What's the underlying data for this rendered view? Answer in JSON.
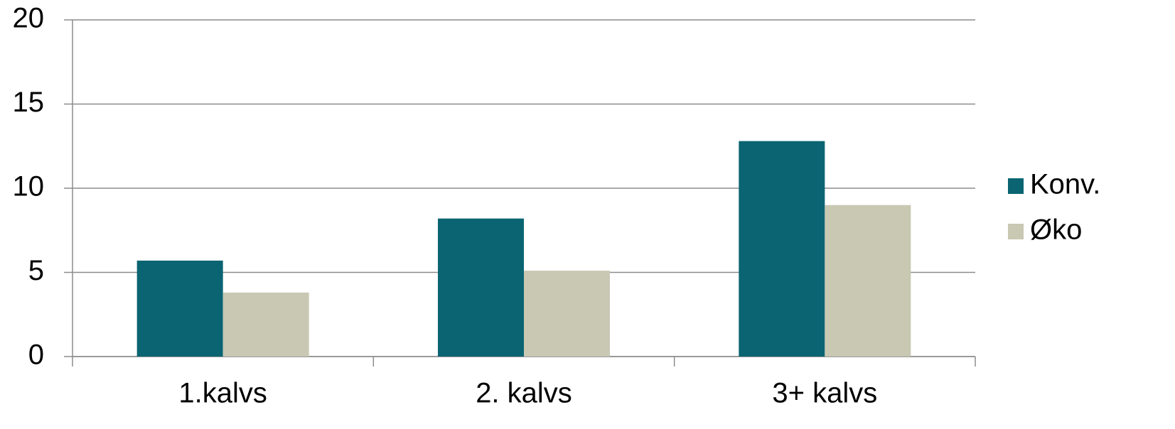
{
  "chart_data": {
    "type": "bar",
    "categories": [
      "1.kalvs",
      "2. kalvs",
      "3+ kalvs"
    ],
    "series": [
      {
        "name": "Konv.",
        "color": "#0a6472",
        "values": [
          5.7,
          8.2,
          12.8
        ]
      },
      {
        "name": "Øko",
        "color": "#c8c8b3",
        "values": [
          3.8,
          5.1,
          9.0
        ]
      }
    ],
    "ylim": [
      0,
      20
    ],
    "yticks": [
      0,
      5,
      10,
      15,
      20
    ],
    "grid": true,
    "legend": "right"
  }
}
